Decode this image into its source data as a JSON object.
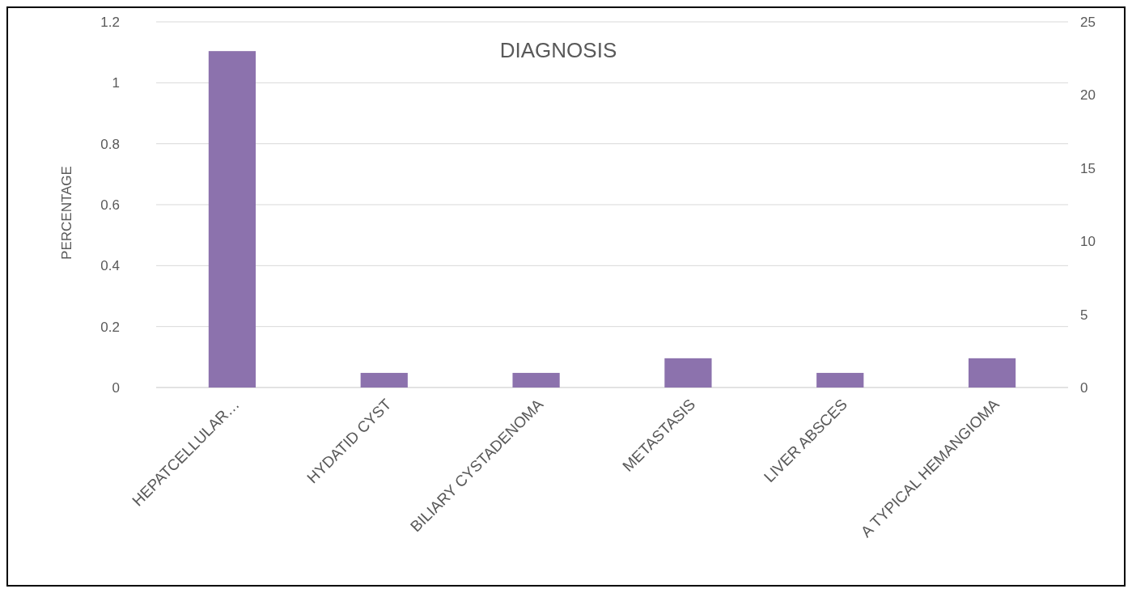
{
  "chart_data": {
    "type": "bar",
    "title": "DIAGNOSIS",
    "ylabel": "PERCENTAGE",
    "categories": [
      "HEPATCELLULAR…",
      "HYDATID CYST",
      "BILIARY CYSTADENOMA",
      "METASTASIS",
      "LIVER ABSCES",
      "A TYPICAL HEMANGIOMA"
    ],
    "series": [
      {
        "color": "#8c72ad",
        "axis": "y2",
        "values": [
          23,
          1,
          1,
          2,
          1,
          2
        ]
      }
    ],
    "ylim": [
      0,
      1.2
    ],
    "yticks": [
      0,
      0.2,
      0.4,
      0.6,
      0.8,
      1,
      1.2
    ],
    "y2lim": [
      0,
      25
    ],
    "y2ticks": [
      0,
      5,
      10,
      15,
      20,
      25
    ],
    "grid": "y"
  }
}
